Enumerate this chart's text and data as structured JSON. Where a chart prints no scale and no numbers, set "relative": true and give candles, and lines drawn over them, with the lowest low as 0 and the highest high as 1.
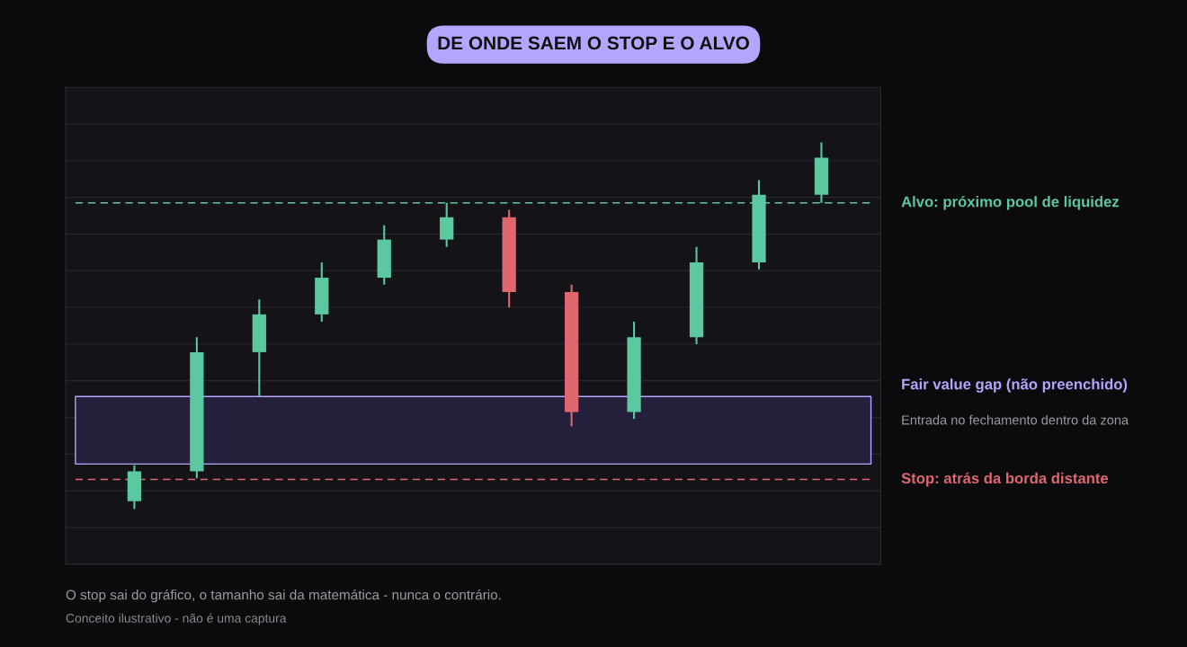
{
  "chart_data": {
    "type": "candlestick",
    "title": "DE ONDE SAEM O STOP E O ALVO",
    "relative": true,
    "categories": [
      null,
      null,
      null,
      null,
      null,
      null,
      null,
      null,
      null,
      null,
      null,
      null
    ],
    "ohlc": [
      [
        0.022,
        0.12,
        0,
        0.103
      ],
      [
        0.103,
        0.469,
        0.084,
        0.428
      ],
      [
        0.428,
        0.572,
        0.307,
        0.531
      ],
      [
        0.531,
        0.673,
        0.511,
        0.631
      ],
      [
        0.631,
        0.774,
        0.612,
        0.735
      ],
      [
        0.735,
        0.835,
        0.715,
        0.796
      ],
      [
        0.796,
        0.816,
        0.55,
        0.592
      ],
      [
        0.592,
        0.612,
        0.226,
        0.265
      ],
      [
        0.265,
        0.511,
        0.246,
        0.469
      ],
      [
        0.469,
        0.715,
        0.45,
        0.673
      ],
      [
        0.673,
        0.897,
        0.654,
        0.857
      ],
      [
        0.857,
        1,
        0.835,
        0.958
      ]
    ],
    "colors": [
      "#5cc8a0",
      "#5cc8a0",
      "#5cc8a0",
      "#5cc8a0",
      "#5cc8a0",
      "#5cc8a0",
      "#e06670",
      "#e06670",
      "#5cc8a0",
      "#5cc8a0",
      "#5cc8a0",
      "#5cc8a0"
    ],
    "ref_lines": [
      {
        "axis": "y",
        "value": 0.835,
        "label": "Alvo: próximo pool de liquidez",
        "color": "#5cc8a0",
        "line_style": "dashed"
      },
      {
        "axis": "y",
        "value": 0.081,
        "label": "Stop: atrás da borda distante",
        "color": "#e06670",
        "line_style": "dashed"
      }
    ],
    "bands": [
      {
        "axis": "y",
        "from": 0.123,
        "to": 0.307,
        "label": "Fair value gap (não preenchido)",
        "color": "#b4a6ff"
      }
    ],
    "annotations": [
      "Entrada no fechamento dentro da zona",
      "O stop sai do gráfico, o tamanho sai da matemática - nunca o contrário.",
      "Conceito ilustrativo - não é uma captura"
    ],
    "grid": "y",
    "legend": false
  }
}
